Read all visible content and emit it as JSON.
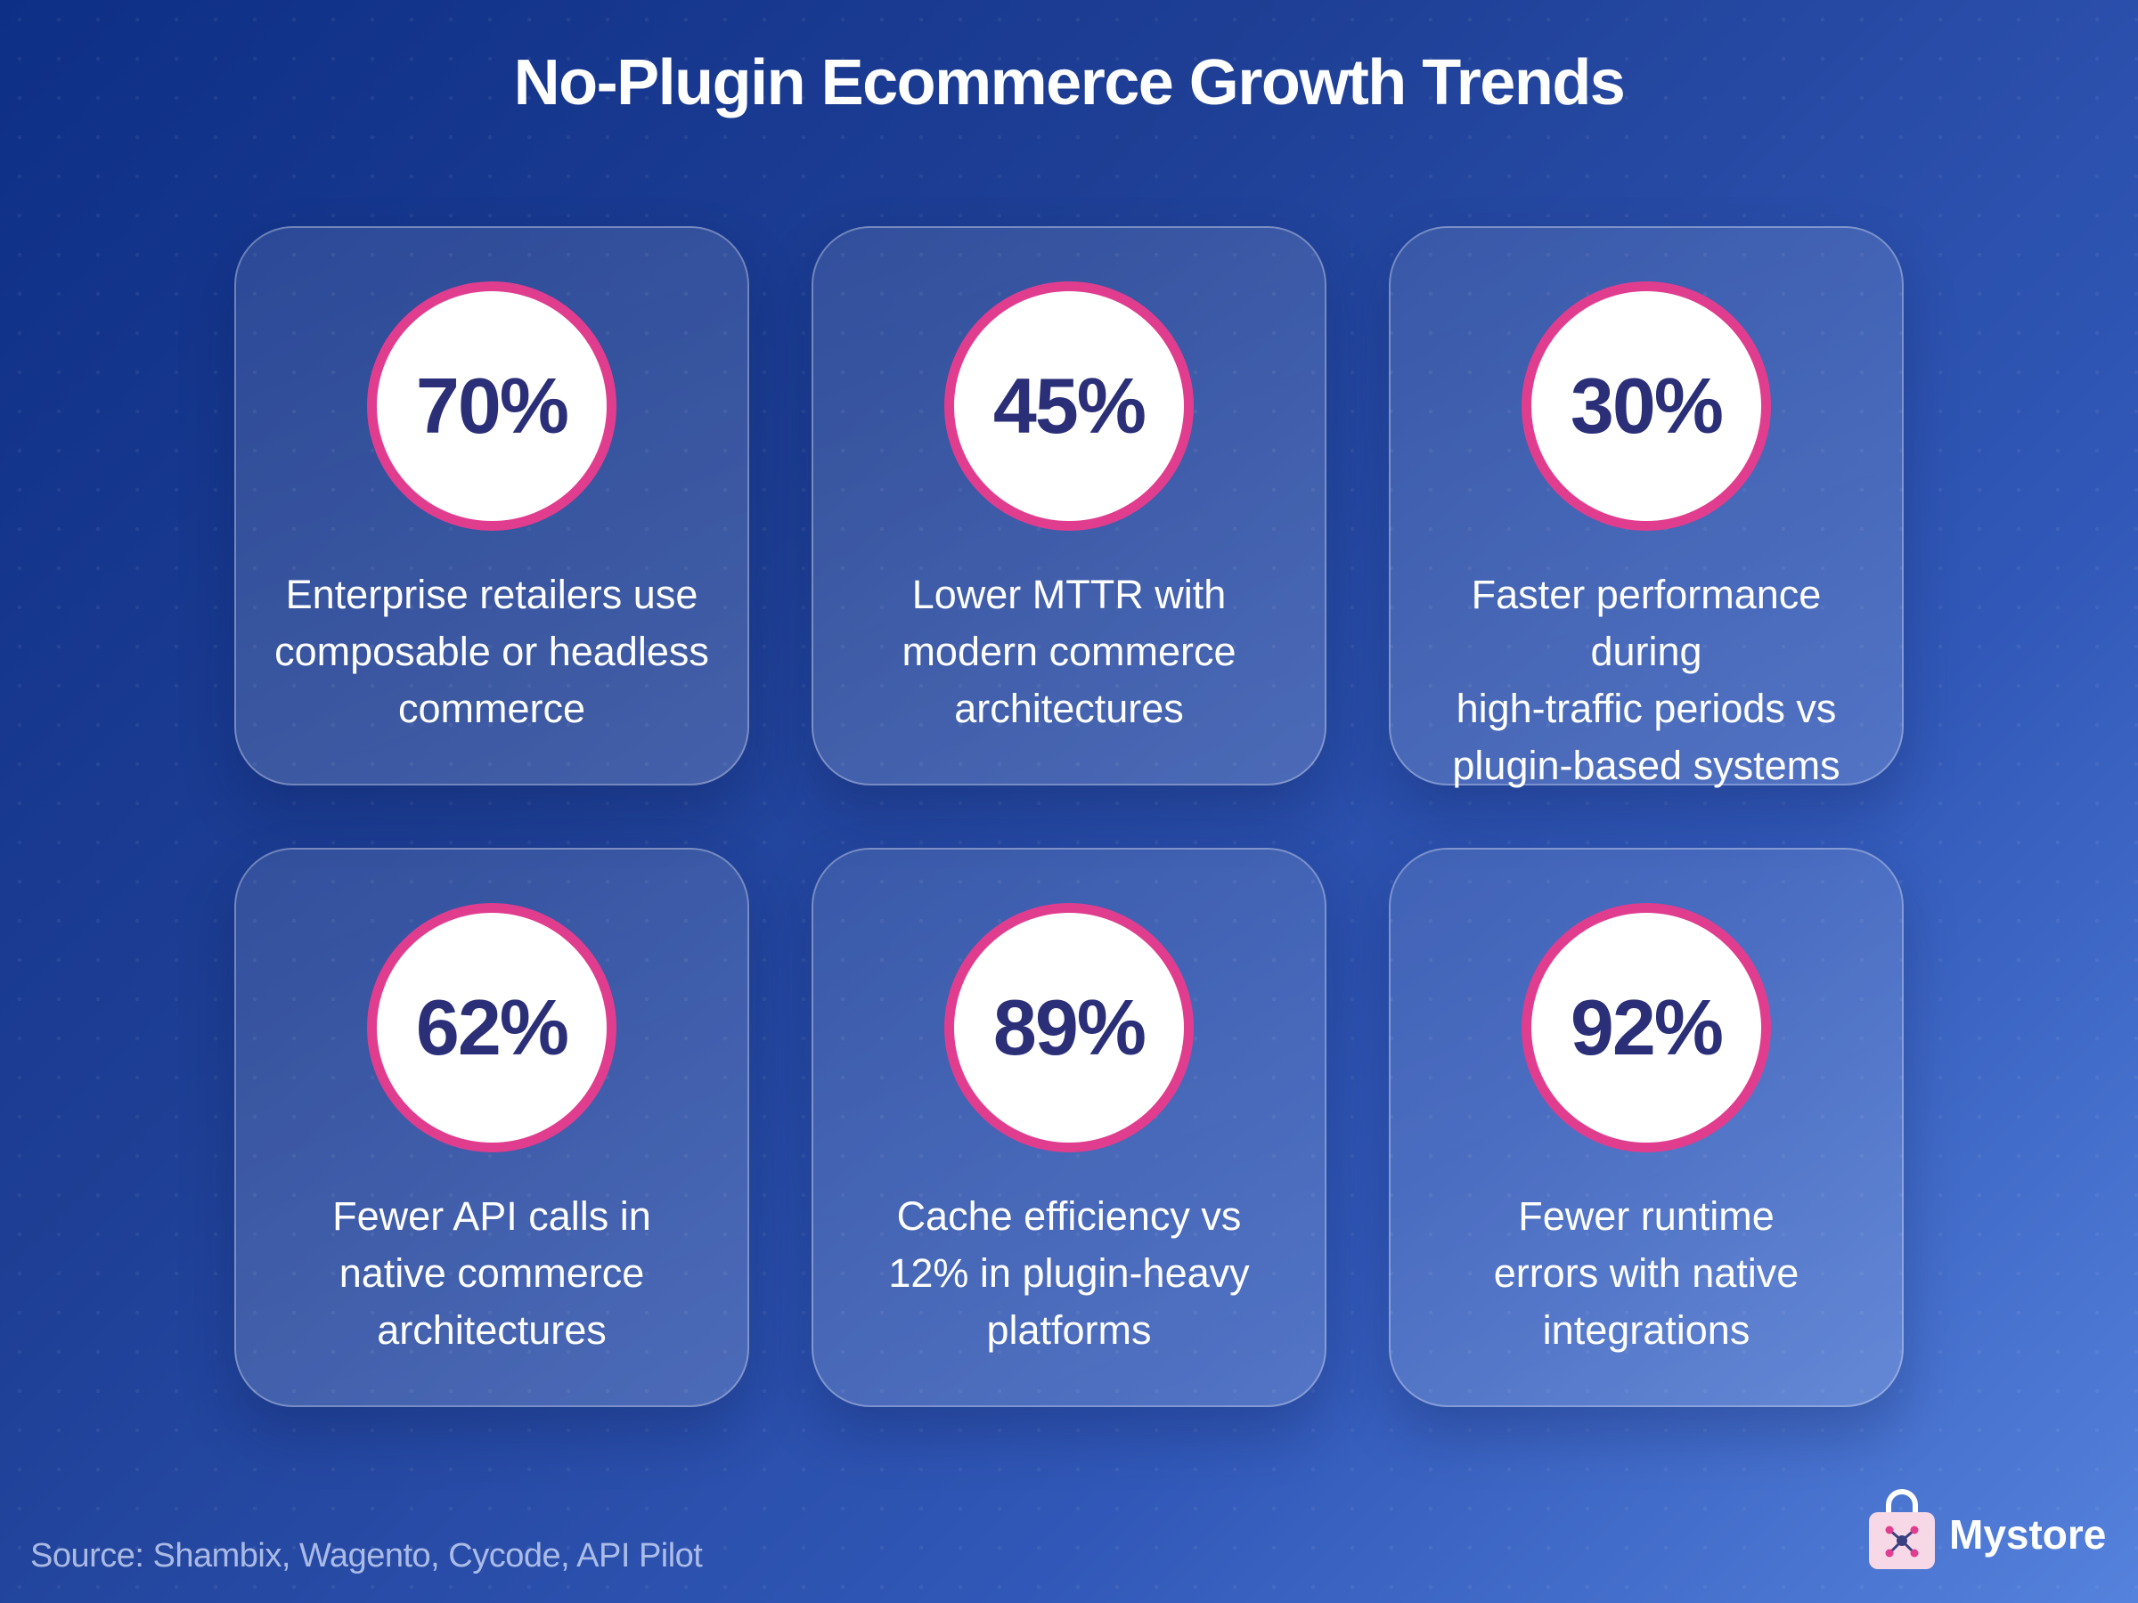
{
  "title": "No-Plugin Ecommerce Growth Trends",
  "colors": {
    "background_start": "#0e2f86",
    "background_end": "#5582dc",
    "ring_border": "#e13d8f",
    "stat_text": "#2a2f78",
    "text": "#ffffff"
  },
  "cards": [
    {
      "stat": "70%",
      "description": "Enterprise retailers use\ncomposable or headless\ncommerce"
    },
    {
      "stat": "45%",
      "description": "Lower MTTR with\nmodern commerce\narchitectures"
    },
    {
      "stat": "30%",
      "description": "Faster performance during\nhigh-traffic periods vs\nplugin-based systems"
    },
    {
      "stat": "62%",
      "description": "Fewer API calls in\nnative commerce\narchitectures"
    },
    {
      "stat": "89%",
      "description": "Cache efficiency vs\n12% in plugin-heavy\nplatforms"
    },
    {
      "stat": "92%",
      "description": "Fewer runtime\nerrors with native\nintegrations"
    }
  ],
  "source": "Source: Shambix, Wagento, Cycode, API Pilot",
  "brand": {
    "name": "Mystore",
    "icon": "shopping-bag-icon"
  }
}
